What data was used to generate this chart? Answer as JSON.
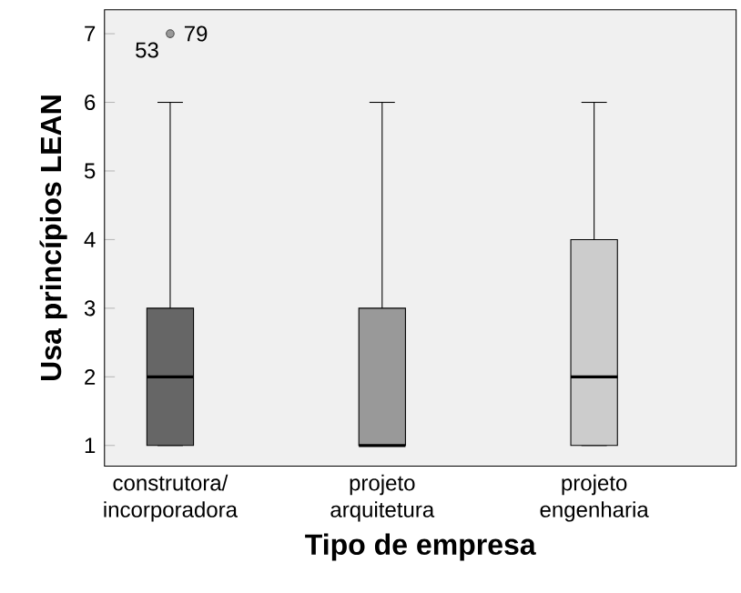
{
  "chart_data": {
    "type": "box",
    "xlabel": "Tipo de empresa",
    "ylabel": "Usa princípios LEAN",
    "categories": [
      "construtora/ incorporadora",
      "projeto arquitetura",
      "projeto engenharia"
    ],
    "boxes": [
      {
        "low": 1,
        "q1": 1,
        "median": 2,
        "q3": 3,
        "high": 6,
        "outliers": [
          7
        ]
      },
      {
        "low": 1,
        "q1": 1,
        "median": 1,
        "q3": 3,
        "high": 6
      },
      {
        "low": 1,
        "q1": 1,
        "median": 2,
        "q3": 4,
        "high": 6
      }
    ],
    "colors": [
      "#666666",
      "#999999",
      "#cccccc"
    ],
    "ylim": [
      0.7,
      7.35
    ],
    "yticks": [
      1,
      2,
      3,
      4,
      5,
      6,
      7
    ],
    "grid": false,
    "annotations": [
      "53",
      "79"
    ]
  }
}
